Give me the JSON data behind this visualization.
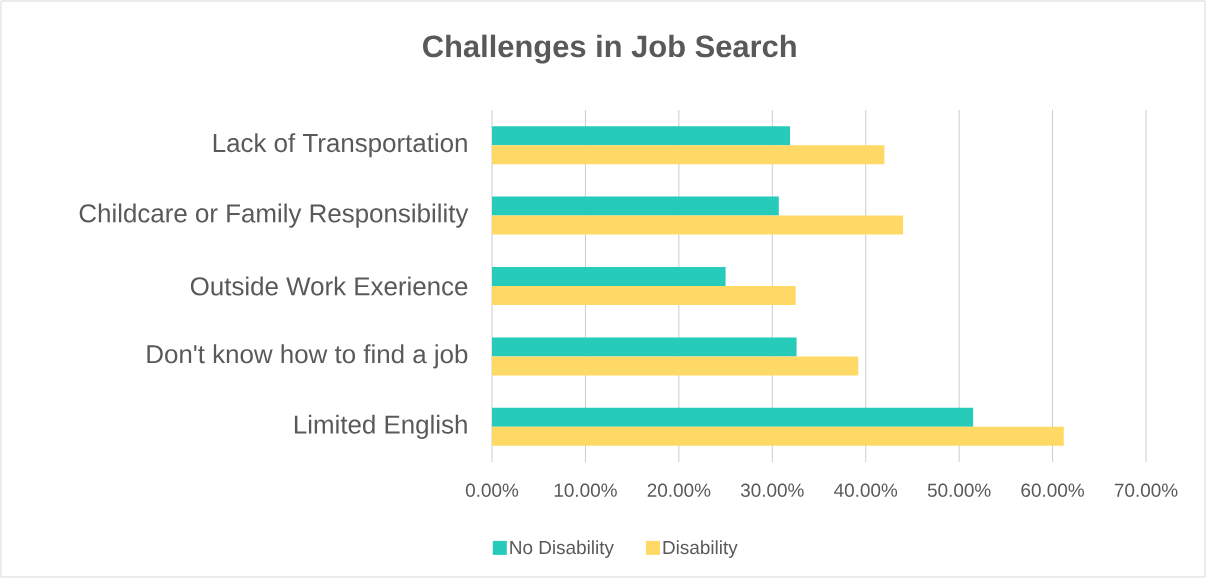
{
  "chart_data": {
    "type": "bar",
    "orientation": "horizontal",
    "title": "Challenges in Job Search",
    "categories": [
      "Lack of Transportation",
      "Childcare or Family Responsibility",
      "Outside Work Exerience",
      "Don't know how to find a job",
      "Limited English"
    ],
    "series": [
      {
        "name": "No Disability",
        "color": "#26cbba",
        "values": [
          31.9,
          30.7,
          25.0,
          32.6,
          51.5
        ]
      },
      {
        "name": "Disability",
        "color": "#ffd966",
        "values": [
          42.0,
          44.0,
          32.5,
          39.2,
          61.2
        ]
      }
    ],
    "xlim": [
      0,
      70
    ],
    "xticks": [
      {
        "value": 0,
        "label": "0.00%"
      },
      {
        "value": 10,
        "label": "10.00%"
      },
      {
        "value": 20,
        "label": "20.00%"
      },
      {
        "value": 30,
        "label": "30.00%"
      },
      {
        "value": 40,
        "label": "40.00%"
      },
      {
        "value": 50,
        "label": "50.00%"
      },
      {
        "value": 60,
        "label": "60.00%"
      },
      {
        "value": 70,
        "label": "70.00%"
      }
    ],
    "grid": "x",
    "legend": "bottom"
  }
}
